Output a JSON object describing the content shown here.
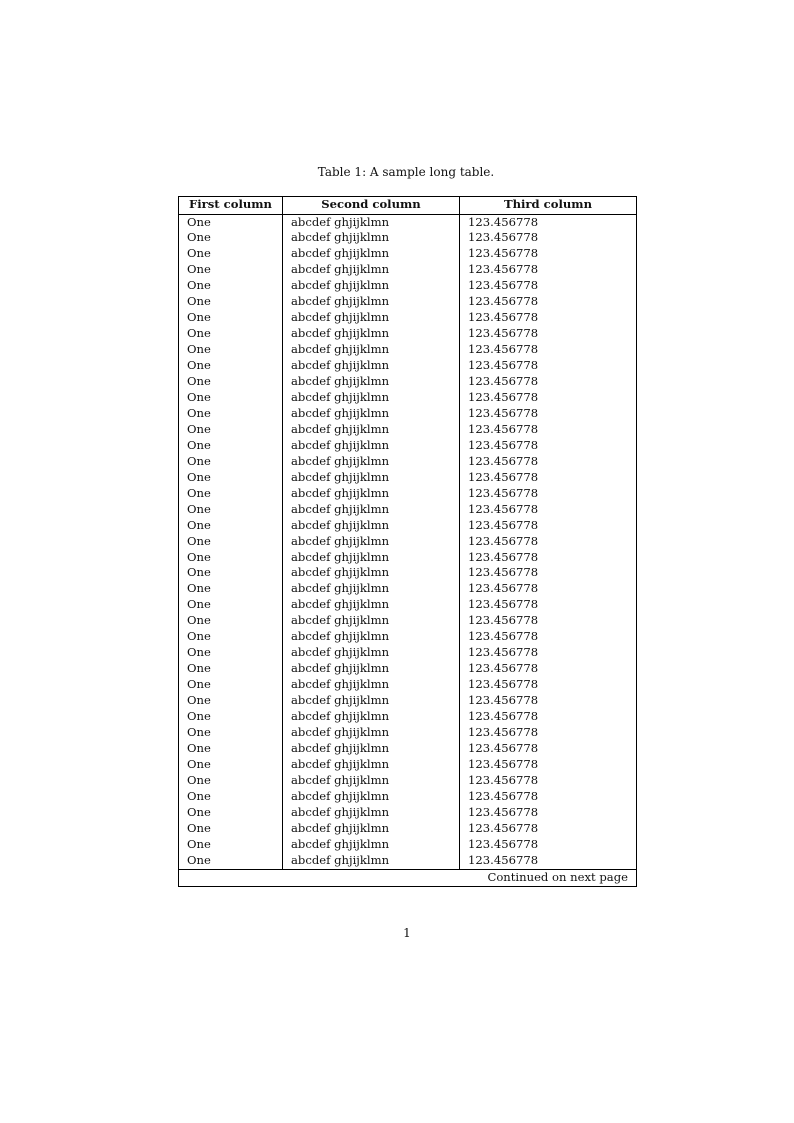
{
  "caption": "Table 1:  A sample long table.",
  "table": {
    "headers": [
      "First column",
      "Second column",
      "Third column"
    ],
    "rows": [
      [
        "One",
        "abcdef ghjijklmn",
        "123.456778"
      ],
      [
        "One",
        "abcdef ghjijklmn",
        "123.456778"
      ],
      [
        "One",
        "abcdef ghjijklmn",
        "123.456778"
      ],
      [
        "One",
        "abcdef ghjijklmn",
        "123.456778"
      ],
      [
        "One",
        "abcdef ghjijklmn",
        "123.456778"
      ],
      [
        "One",
        "abcdef ghjijklmn",
        "123.456778"
      ],
      [
        "One",
        "abcdef ghjijklmn",
        "123.456778"
      ],
      [
        "One",
        "abcdef ghjijklmn",
        "123.456778"
      ],
      [
        "One",
        "abcdef ghjijklmn",
        "123.456778"
      ],
      [
        "One",
        "abcdef ghjijklmn",
        "123.456778"
      ],
      [
        "One",
        "abcdef ghjijklmn",
        "123.456778"
      ],
      [
        "One",
        "abcdef ghjijklmn",
        "123.456778"
      ],
      [
        "One",
        "abcdef ghjijklmn",
        "123.456778"
      ],
      [
        "One",
        "abcdef ghjijklmn",
        "123.456778"
      ],
      [
        "One",
        "abcdef ghjijklmn",
        "123.456778"
      ],
      [
        "One",
        "abcdef ghjijklmn",
        "123.456778"
      ],
      [
        "One",
        "abcdef ghjijklmn",
        "123.456778"
      ],
      [
        "One",
        "abcdef ghjijklmn",
        "123.456778"
      ],
      [
        "One",
        "abcdef ghjijklmn",
        "123.456778"
      ],
      [
        "One",
        "abcdef ghjijklmn",
        "123.456778"
      ],
      [
        "One",
        "abcdef ghjijklmn",
        "123.456778"
      ],
      [
        "One",
        "abcdef ghjijklmn",
        "123.456778"
      ],
      [
        "One",
        "abcdef ghjijklmn",
        "123.456778"
      ],
      [
        "One",
        "abcdef ghjijklmn",
        "123.456778"
      ],
      [
        "One",
        "abcdef ghjijklmn",
        "123.456778"
      ],
      [
        "One",
        "abcdef ghjijklmn",
        "123.456778"
      ],
      [
        "One",
        "abcdef ghjijklmn",
        "123.456778"
      ],
      [
        "One",
        "abcdef ghjijklmn",
        "123.456778"
      ],
      [
        "One",
        "abcdef ghjijklmn",
        "123.456778"
      ],
      [
        "One",
        "abcdef ghjijklmn",
        "123.456778"
      ],
      [
        "One",
        "abcdef ghjijklmn",
        "123.456778"
      ],
      [
        "One",
        "abcdef ghjijklmn",
        "123.456778"
      ],
      [
        "One",
        "abcdef ghjijklmn",
        "123.456778"
      ],
      [
        "One",
        "abcdef ghjijklmn",
        "123.456778"
      ],
      [
        "One",
        "abcdef ghjijklmn",
        "123.456778"
      ],
      [
        "One",
        "abcdef ghjijklmn",
        "123.456778"
      ],
      [
        "One",
        "abcdef ghjijklmn",
        "123.456778"
      ],
      [
        "One",
        "abcdef ghjijklmn",
        "123.456778"
      ],
      [
        "One",
        "abcdef ghjijklmn",
        "123.456778"
      ],
      [
        "One",
        "abcdef ghjijklmn",
        "123.456778"
      ],
      [
        "One",
        "abcdef ghjijklmn",
        "123.456778"
      ]
    ],
    "footer": "Continued on next page"
  },
  "page_number": "1"
}
